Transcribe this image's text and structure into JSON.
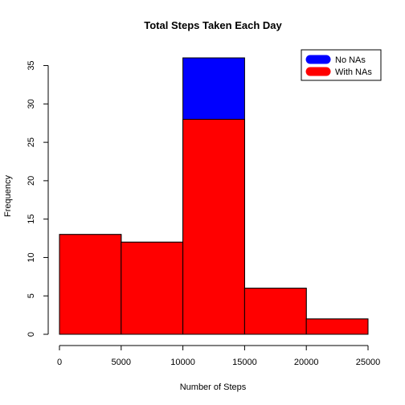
{
  "chart_data": {
    "type": "bar",
    "title": "Total Steps Taken Each Day",
    "xlabel": "Number of Steps",
    "ylabel": "Frequency",
    "bins": [
      [
        0,
        5000
      ],
      [
        5000,
        10000
      ],
      [
        10000,
        15000
      ],
      [
        15000,
        20000
      ],
      [
        20000,
        25000
      ]
    ],
    "x_ticks": [
      "0",
      "5000",
      "10000",
      "15000",
      "20000",
      "25000"
    ],
    "y_ticks": [
      "0",
      "5",
      "10",
      "15",
      "20",
      "25",
      "30",
      "35"
    ],
    "xlim": [
      0,
      25000
    ],
    "ylim": [
      0,
      35
    ],
    "series": [
      {
        "name": "No NAs",
        "color": "#0000ff",
        "values": [
          13,
          12,
          36,
          6,
          2
        ]
      },
      {
        "name": "With NAs",
        "color": "#ff0000",
        "values": [
          13,
          12,
          28,
          6,
          2
        ]
      }
    ],
    "legend_position": "top-right",
    "grid": false
  }
}
